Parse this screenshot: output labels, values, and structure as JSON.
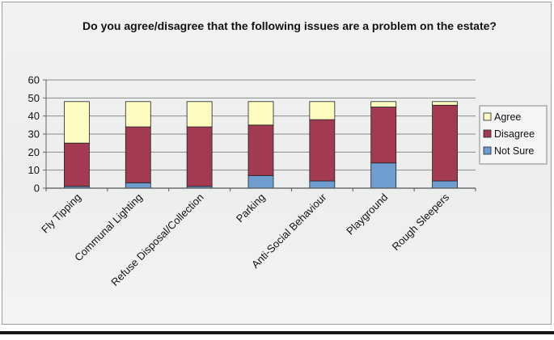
{
  "chart_data": {
    "type": "bar",
    "stacked": true,
    "title": "Do you agree/disagree that the following issues are a problem on the estate?",
    "xlabel": "",
    "ylabel": "",
    "ylim": [
      0,
      60
    ],
    "yticks": [
      0,
      10,
      20,
      30,
      40,
      50,
      60
    ],
    "grid": true,
    "legend_position": "right",
    "categories": [
      "Fly Tipping",
      "Communal Lighting",
      "Refuse Disposal/Collection",
      "Parking",
      "Anti-Social Behaviour",
      "Playground",
      "Rough Sleepers"
    ],
    "series": [
      {
        "name": "Not Sure",
        "color": "#6f9dd0",
        "values": [
          1,
          3,
          1,
          7,
          4,
          14,
          4
        ]
      },
      {
        "name": "Disagree",
        "color": "#a23b52",
        "values": [
          24,
          31,
          33,
          28,
          34,
          31,
          42
        ]
      },
      {
        "name": "Agree",
        "color": "#fdfbbf",
        "values": [
          23,
          14,
          14,
          13,
          10,
          3,
          2
        ]
      }
    ],
    "legend_order": [
      "Agree",
      "Disagree",
      "Not Sure"
    ]
  }
}
